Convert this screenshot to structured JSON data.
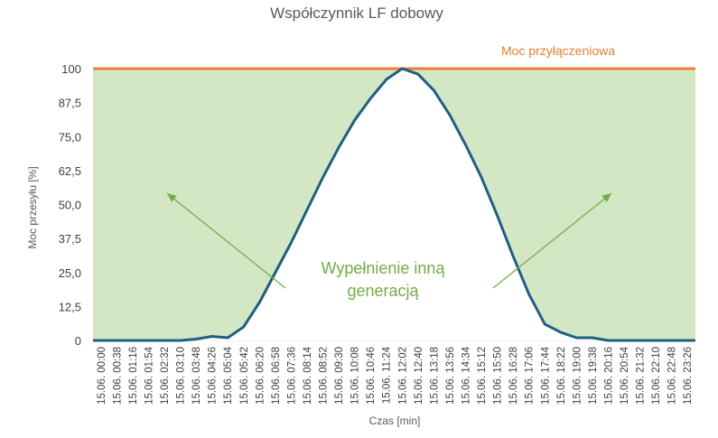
{
  "chart_data": {
    "type": "area",
    "title": "Współczynnik LF dobowy",
    "xlabel": "Czas [min]",
    "ylabel": "Moc przesyłu  [%]",
    "ylim": [
      0,
      100
    ],
    "yticks": [
      "0",
      "12,5",
      "25,0",
      "37,5",
      "50,0",
      "62,5",
      "75,0",
      "87,5",
      "100"
    ],
    "ytick_values": [
      0,
      12.5,
      25,
      37.5,
      50,
      62.5,
      75,
      87.5,
      100
    ],
    "grid": true,
    "categories": [
      "15.06. 00:00",
      "15.06. 00:38",
      "15.06. 01:16",
      "15.06. 01:54",
      "15.06. 02:32",
      "15.06. 03:10",
      "15.06. 03:48",
      "15.06. 04:26",
      "15.06. 05:04",
      "15.06. 05:42",
      "15.06. 06:20",
      "15.06. 06:58",
      "15.06. 07:36",
      "15.06. 08:14",
      "15.06. 08:52",
      "15.06. 09:30",
      "15.06. 10:08",
      "15.06. 10:46",
      "15.06. 11:24",
      "15.06. 12:02",
      "15.06. 12:40",
      "15.06. 13:18",
      "15.06. 13:56",
      "15.06. 14:34",
      "15.06. 15:12",
      "15.06. 15:50",
      "15.06. 16:28",
      "15.06. 17:06",
      "15.06. 17:44",
      "15.06. 18:22",
      "15.06. 19:00",
      "15.06. 19:38",
      "15.06. 20:16",
      "15.06. 20:54",
      "15.06. 21:32",
      "15.06. 22:10",
      "15.06. 22:48",
      "15.06. 23:26"
    ],
    "series": [
      {
        "name": "",
        "color": "#1f5f82",
        "values": [
          0,
          0,
          0,
          0,
          0,
          0,
          0.5,
          1.5,
          1,
          5,
          14,
          25,
          36,
          48,
          60,
          71,
          81,
          89,
          96,
          100,
          98,
          92,
          83,
          72,
          60,
          46,
          31,
          17,
          6,
          3,
          1,
          1,
          0,
          0,
          0,
          0,
          0,
          0
        ]
      }
    ],
    "reference_line": {
      "label": "Moc przyłączeniowa",
      "value": 100,
      "color": "#ed7d31"
    },
    "fill_color": "#d4e7c5",
    "annotation": {
      "text": "Wypełnienie inną generacją",
      "color": "#70ad47"
    }
  }
}
